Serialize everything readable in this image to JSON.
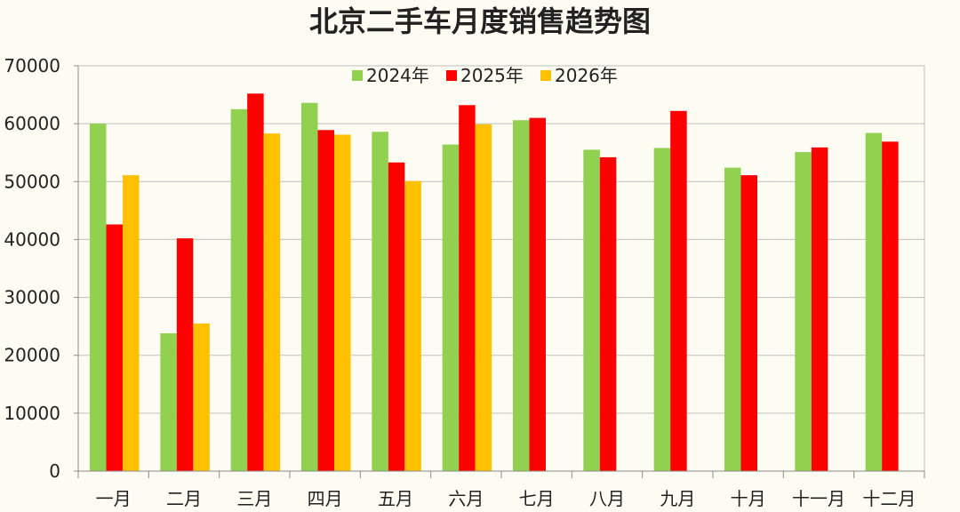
{
  "chart_data": {
    "type": "bar",
    "title": "北京二手车月度销售趋势图",
    "xlabel": "",
    "ylabel": "",
    "ylim": [
      0,
      70000
    ],
    "yticks": [
      0,
      10000,
      20000,
      30000,
      40000,
      50000,
      60000,
      70000
    ],
    "grid": true,
    "legend_position": "top-center",
    "categories": [
      "一月",
      "二月",
      "三月",
      "四月",
      "五月",
      "六月",
      "七月",
      "八月",
      "九月",
      "十月",
      "十一月",
      "十二月"
    ],
    "series": [
      {
        "name": "2024年",
        "color": "#92D050",
        "values": [
          60000,
          23800,
          62500,
          63600,
          58600,
          56400,
          60600,
          55500,
          55800,
          52400,
          55100,
          58400
        ]
      },
      {
        "name": "2025年",
        "color": "#FF0000",
        "values": [
          42600,
          40200,
          65200,
          58900,
          53300,
          63200,
          61000,
          54200,
          62200,
          51100,
          55900,
          56900
        ]
      },
      {
        "name": "2026年",
        "color": "#FFC000",
        "values": [
          51100,
          25500,
          58300,
          58100,
          50100,
          59900,
          null,
          null,
          null,
          null,
          null,
          null
        ]
      }
    ]
  }
}
